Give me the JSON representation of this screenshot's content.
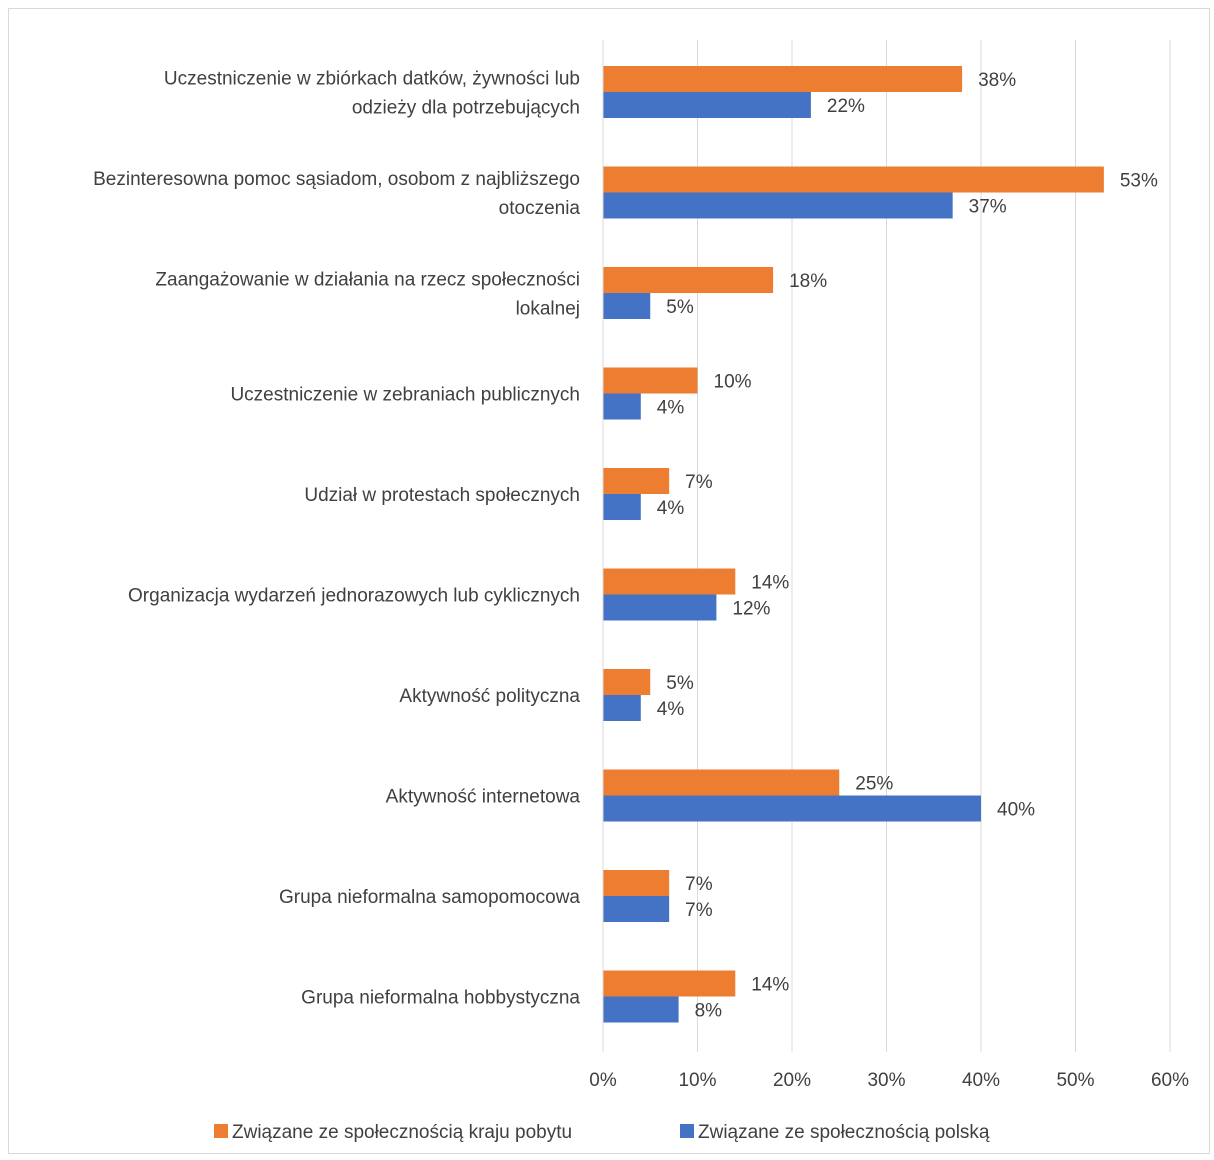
{
  "chart_data": {
    "type": "bar",
    "orientation": "horizontal",
    "categories": [
      [
        "Uczestniczenie w zbiórkach datków, żywności lub",
        "odzieży dla potrzebujących"
      ],
      [
        "Bezinteresowna pomoc sąsiadom, osobom z najbliższego",
        "otoczenia"
      ],
      [
        "Zaangażowanie w działania na rzecz społeczności",
        "lokalnej"
      ],
      [
        "Uczestniczenie w zebraniach publicznych"
      ],
      [
        "Udział w protestach społecznych"
      ],
      [
        "Organizacja wydarzeń jednorazowych lub cyklicznych"
      ],
      [
        "Aktywność polityczna"
      ],
      [
        "Aktywność internetowa"
      ],
      [
        "Grupa nieformalna samopomocowa"
      ],
      [
        "Grupa nieformalna hobbystyczna"
      ]
    ],
    "series": [
      {
        "name": "Związane ze społecznością kraju pobytu",
        "color": "#ed7d31",
        "values": [
          38,
          53,
          18,
          10,
          7,
          14,
          5,
          25,
          7,
          14
        ],
        "labels": [
          "38%",
          "53%",
          "18%",
          "10%",
          "7%",
          "14%",
          "5%",
          "25%",
          "7%",
          "14%"
        ]
      },
      {
        "name": "Związane ze społecznością polską",
        "color": "#4472c4",
        "values": [
          22,
          37,
          5,
          4,
          4,
          12,
          4,
          40,
          7,
          8
        ],
        "labels": [
          "22%",
          "37%",
          "5%",
          "4%",
          "4%",
          "12%",
          "4%",
          "40%",
          "7%",
          "8%"
        ]
      }
    ],
    "xlim": [
      0,
      60
    ],
    "xticks": [
      "0%",
      "10%",
      "20%",
      "30%",
      "40%",
      "50%",
      "60%"
    ],
    "grid": true,
    "legend": "bottom",
    "title": "",
    "xlabel": "",
    "ylabel": ""
  }
}
